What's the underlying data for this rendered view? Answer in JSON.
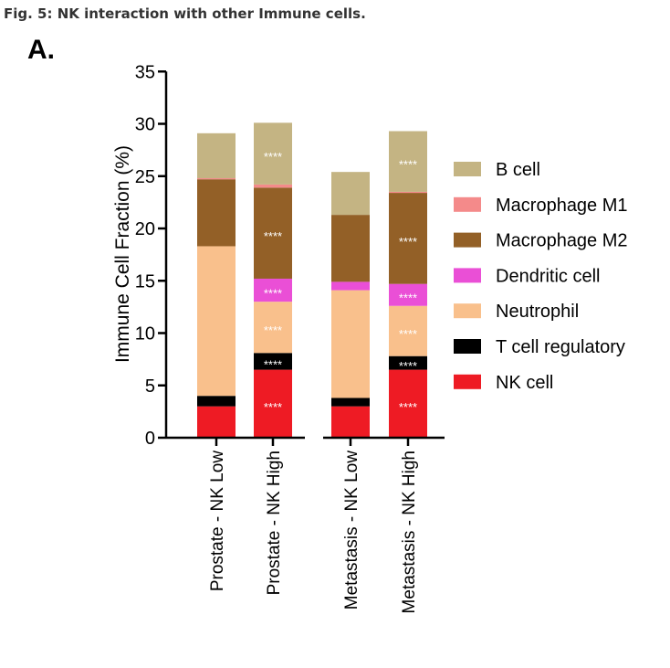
{
  "caption": "Fig. 5: NK interaction with other Immune cells.",
  "panel_label": "A.",
  "chart_data": {
    "type": "bar",
    "stacked": true,
    "ylabel": "Immune Cell  Fraction (%)",
    "xlabel": "",
    "ylim": [
      0,
      35
    ],
    "yticks": [
      0,
      5,
      10,
      15,
      20,
      25,
      30,
      35
    ],
    "grid": false,
    "legend_position": "right",
    "groups": [
      [
        "Prostate - NK Low",
        "Prostate - NK High"
      ],
      [
        "Metastasis - NK Low",
        "Metastasis - NK High"
      ]
    ],
    "categories": [
      "Prostate - NK Low",
      "Prostate - NK High",
      "Metastasis - NK Low",
      "Metastasis - NK High"
    ],
    "series": [
      {
        "name": "NK cell",
        "color": "#ee1b24",
        "values": [
          3.0,
          6.5,
          3.0,
          6.5
        ],
        "annotations": [
          "",
          "****",
          "",
          "****"
        ]
      },
      {
        "name": "T cell regulatory",
        "color": "#000000",
        "values": [
          1.0,
          1.6,
          0.8,
          1.3
        ],
        "annotations": [
          "",
          "****",
          "",
          "****"
        ]
      },
      {
        "name": "Neutrophil",
        "color": "#f9c08c",
        "values": [
          14.3,
          4.9,
          10.3,
          4.8
        ],
        "annotations": [
          "",
          "****",
          "",
          "****"
        ]
      },
      {
        "name": "Dendritic cell",
        "color": "#ea4fd6",
        "values": [
          0.0,
          2.2,
          0.8,
          2.1
        ],
        "annotations": [
          "",
          "****",
          "",
          "****"
        ]
      },
      {
        "name": "Macrophage M2",
        "color": "#936027",
        "values": [
          6.4,
          8.7,
          6.4,
          8.7
        ],
        "annotations": [
          "",
          "****",
          "",
          "****"
        ]
      },
      {
        "name": "Macrophage M1",
        "color": "#f48a8a",
        "values": [
          0.1,
          0.3,
          0.0,
          0.1
        ],
        "annotations": [
          "",
          "",
          "",
          ""
        ]
      },
      {
        "name": "B cell",
        "color": "#c4b483",
        "values": [
          4.3,
          5.9,
          4.1,
          5.8
        ],
        "annotations": [
          "",
          "****",
          "",
          "****"
        ]
      }
    ],
    "legend_order": [
      "B cell",
      "Macrophage M1",
      "Macrophage M2",
      "Dendritic cell",
      "Neutrophil",
      "T cell regulatory",
      "NK cell"
    ]
  }
}
